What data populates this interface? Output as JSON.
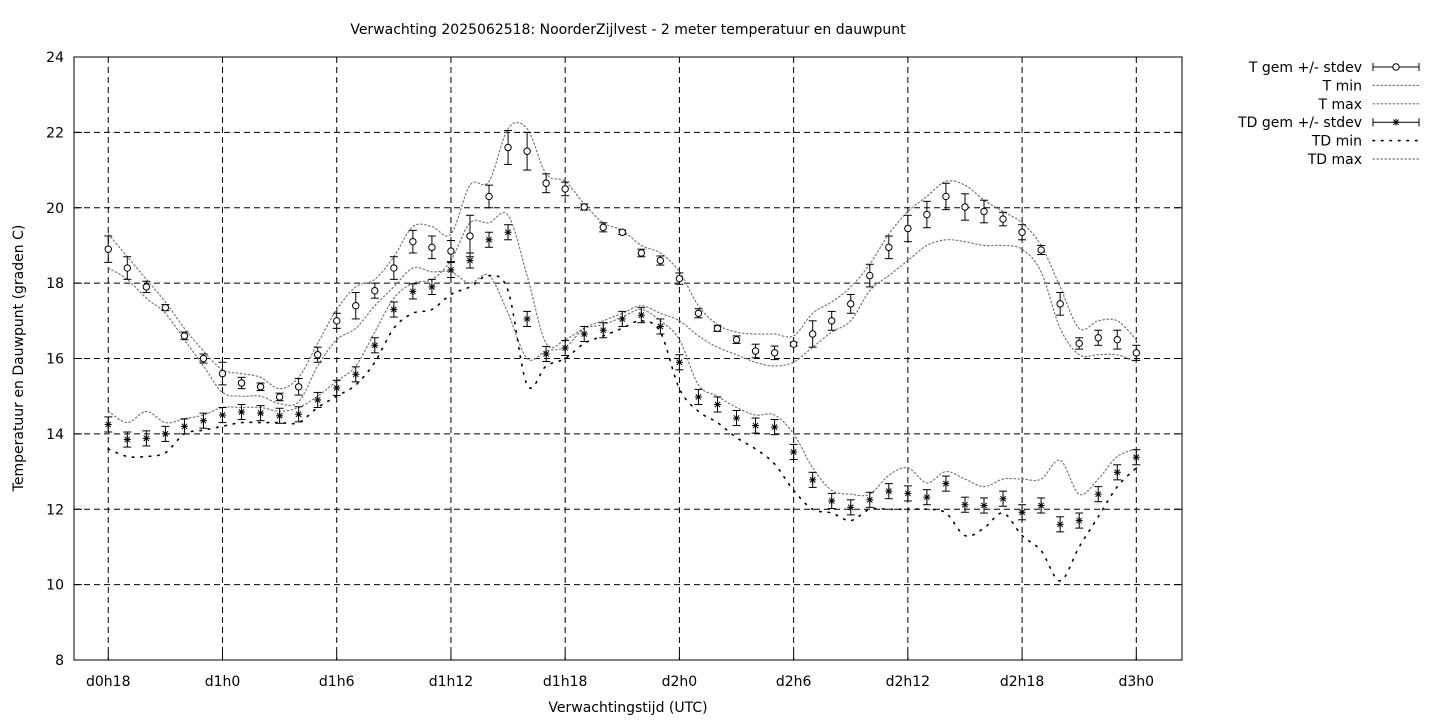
{
  "chart_data": {
    "type": "line",
    "title": "Verwachting 2025062518: NoorderZijlvest - 2 meter temperatuur en dauwpunt",
    "xlabel": "Verwachtingstijd (UTC)",
    "ylabel": "Temperatuur en Dauwpunt (graden C)",
    "xlim": [
      -1.8,
      56.4
    ],
    "ylim": [
      8,
      24
    ],
    "yticks": [
      8,
      10,
      12,
      14,
      16,
      18,
      20,
      22,
      24
    ],
    "xticks": [
      {
        "x": 0,
        "label": "d0h18"
      },
      {
        "x": 6,
        "label": "d1h0"
      },
      {
        "x": 12,
        "label": "d1h6"
      },
      {
        "x": 18,
        "label": "d1h12"
      },
      {
        "x": 24,
        "label": "d1h18"
      },
      {
        "x": 30,
        "label": "d2h0"
      },
      {
        "x": 36,
        "label": "d2h6"
      },
      {
        "x": 42,
        "label": "d2h12"
      },
      {
        "x": 48,
        "label": "d2h18"
      },
      {
        "x": 54,
        "label": "d3h0"
      }
    ],
    "grid": true,
    "legend_position": "outside-right",
    "x": [
      0,
      1,
      2,
      3,
      4,
      5,
      6,
      7,
      8,
      9,
      10,
      11,
      12,
      13,
      14,
      15,
      16,
      17,
      18,
      19,
      20,
      21,
      22,
      23,
      24,
      25,
      26,
      27,
      28,
      29,
      30,
      31,
      32,
      33,
      34,
      35,
      36,
      37,
      38,
      39,
      40,
      41,
      42,
      43,
      44,
      45,
      46,
      47,
      48,
      49,
      50,
      51,
      52,
      53,
      54
    ],
    "series": [
      {
        "name": "T gem +/- stdev",
        "marker": "circle",
        "values": [
          18.9,
          18.4,
          17.9,
          17.35,
          16.6,
          16.0,
          15.6,
          15.35,
          15.25,
          14.98,
          15.25,
          16.1,
          17.0,
          17.4,
          17.8,
          18.4,
          19.1,
          18.95,
          18.85,
          19.25,
          20.3,
          21.6,
          21.5,
          20.65,
          20.5,
          20.02,
          19.48,
          19.35,
          18.8,
          18.6,
          18.12,
          17.2,
          16.8,
          16.5,
          16.2,
          16.15,
          16.38,
          16.65,
          17.0,
          17.45,
          18.2,
          18.95,
          19.45,
          19.82,
          20.3,
          20.02,
          19.9,
          19.7,
          19.35,
          18.88,
          17.45,
          16.4,
          16.55,
          16.5,
          16.15
        ],
        "stdev": [
          0.35,
          0.3,
          0.15,
          0.08,
          0.1,
          0.12,
          0.3,
          0.15,
          0.1,
          0.1,
          0.22,
          0.2,
          0.2,
          0.35,
          0.2,
          0.3,
          0.3,
          0.3,
          0.28,
          0.55,
          0.3,
          0.45,
          0.5,
          0.25,
          0.18,
          0.08,
          0.12,
          0.06,
          0.1,
          0.12,
          0.15,
          0.12,
          0.08,
          0.1,
          0.18,
          0.18,
          0.05,
          0.35,
          0.25,
          0.25,
          0.3,
          0.3,
          0.35,
          0.35,
          0.35,
          0.35,
          0.3,
          0.18,
          0.2,
          0.12,
          0.3,
          0.15,
          0.2,
          0.25,
          0.2
        ]
      },
      {
        "name": "T min",
        "style": "dotted",
        "values": [
          18.4,
          18.1,
          17.6,
          17.2,
          16.5,
          15.8,
          15.1,
          15.0,
          15.0,
          14.8,
          14.85,
          15.8,
          16.5,
          16.8,
          17.4,
          17.9,
          18.4,
          18.3,
          18.3,
          18.0,
          18.2,
          17.2,
          16.0,
          16.2,
          16.3,
          16.8,
          17.0,
          17.2,
          17.4,
          17.2,
          17.0,
          16.6,
          16.3,
          16.1,
          15.9,
          15.8,
          15.9,
          16.3,
          16.7,
          17.0,
          17.8,
          18.2,
          18.6,
          19.0,
          19.15,
          19.1,
          19.0,
          19.0,
          18.9,
          18.3,
          16.8,
          16.1,
          16.1,
          16.1,
          15.9
        ]
      },
      {
        "name": "T max",
        "style": "dotted",
        "values": [
          19.3,
          18.7,
          18.1,
          17.5,
          16.8,
          16.2,
          15.7,
          15.6,
          15.5,
          15.2,
          15.5,
          16.4,
          17.3,
          17.9,
          18.1,
          18.7,
          19.5,
          19.5,
          19.3,
          20.6,
          20.7,
          22.1,
          22.1,
          20.9,
          20.7,
          20.1,
          19.6,
          19.4,
          19.0,
          18.8,
          18.3,
          17.4,
          16.9,
          16.7,
          16.65,
          16.65,
          16.6,
          17.2,
          17.5,
          17.9,
          18.5,
          19.3,
          19.9,
          20.3,
          20.7,
          20.6,
          20.2,
          19.9,
          19.6,
          19.0,
          17.9,
          16.8,
          17.0,
          17.0,
          16.5
        ]
      },
      {
        "name": "TD gem +/- stdev",
        "marker": "star",
        "values": [
          14.25,
          13.85,
          13.88,
          14.0,
          14.2,
          14.35,
          14.5,
          14.58,
          14.55,
          14.48,
          14.52,
          14.9,
          15.22,
          15.58,
          16.35,
          17.3,
          17.78,
          17.9,
          18.35,
          18.6,
          19.15,
          19.35,
          17.05,
          16.12,
          16.28,
          16.65,
          16.75,
          17.05,
          17.15,
          16.85,
          15.9,
          14.98,
          14.78,
          14.42,
          14.22,
          14.18,
          13.52,
          12.78,
          12.22,
          12.05,
          12.25,
          12.48,
          12.42,
          12.32,
          12.68,
          12.12,
          12.1,
          12.28,
          11.92,
          12.1,
          11.6,
          11.7,
          12.4,
          12.98,
          13.38
        ]
      },
      {
        "name": "TD min",
        "style": "sparse-dots",
        "values": [
          13.6,
          13.4,
          13.4,
          13.5,
          14.0,
          14.1,
          14.2,
          14.3,
          14.3,
          14.3,
          14.3,
          14.7,
          15.0,
          15.3,
          15.9,
          16.8,
          17.2,
          17.3,
          17.7,
          17.9,
          18.2,
          17.8,
          15.3,
          15.8,
          16.0,
          16.4,
          16.6,
          16.8,
          17.0,
          16.7,
          15.2,
          14.6,
          14.3,
          13.9,
          13.6,
          13.2,
          12.5,
          12.0,
          11.9,
          11.7,
          12.0,
          12.0,
          12.0,
          12.0,
          11.9,
          11.3,
          11.5,
          11.9,
          11.3,
          10.9,
          10.1,
          11.0,
          11.8,
          12.6,
          13.1
        ]
      },
      {
        "name": "TD max",
        "style": "dotted",
        "values": [
          14.6,
          14.3,
          14.6,
          14.3,
          14.4,
          14.5,
          14.7,
          14.7,
          14.7,
          14.6,
          14.7,
          15.0,
          15.4,
          15.8,
          16.7,
          17.6,
          18.0,
          18.1,
          18.6,
          19.6,
          19.6,
          19.8,
          18.2,
          16.4,
          16.5,
          16.8,
          16.9,
          17.1,
          17.3,
          17.0,
          16.5,
          15.3,
          15.0,
          14.7,
          14.5,
          14.5,
          14.0,
          13.1,
          12.5,
          12.4,
          12.4,
          12.9,
          13.1,
          12.7,
          13.0,
          12.8,
          12.6,
          12.8,
          12.8,
          12.8,
          13.3,
          12.4,
          12.8,
          13.4,
          13.6
        ]
      }
    ]
  }
}
